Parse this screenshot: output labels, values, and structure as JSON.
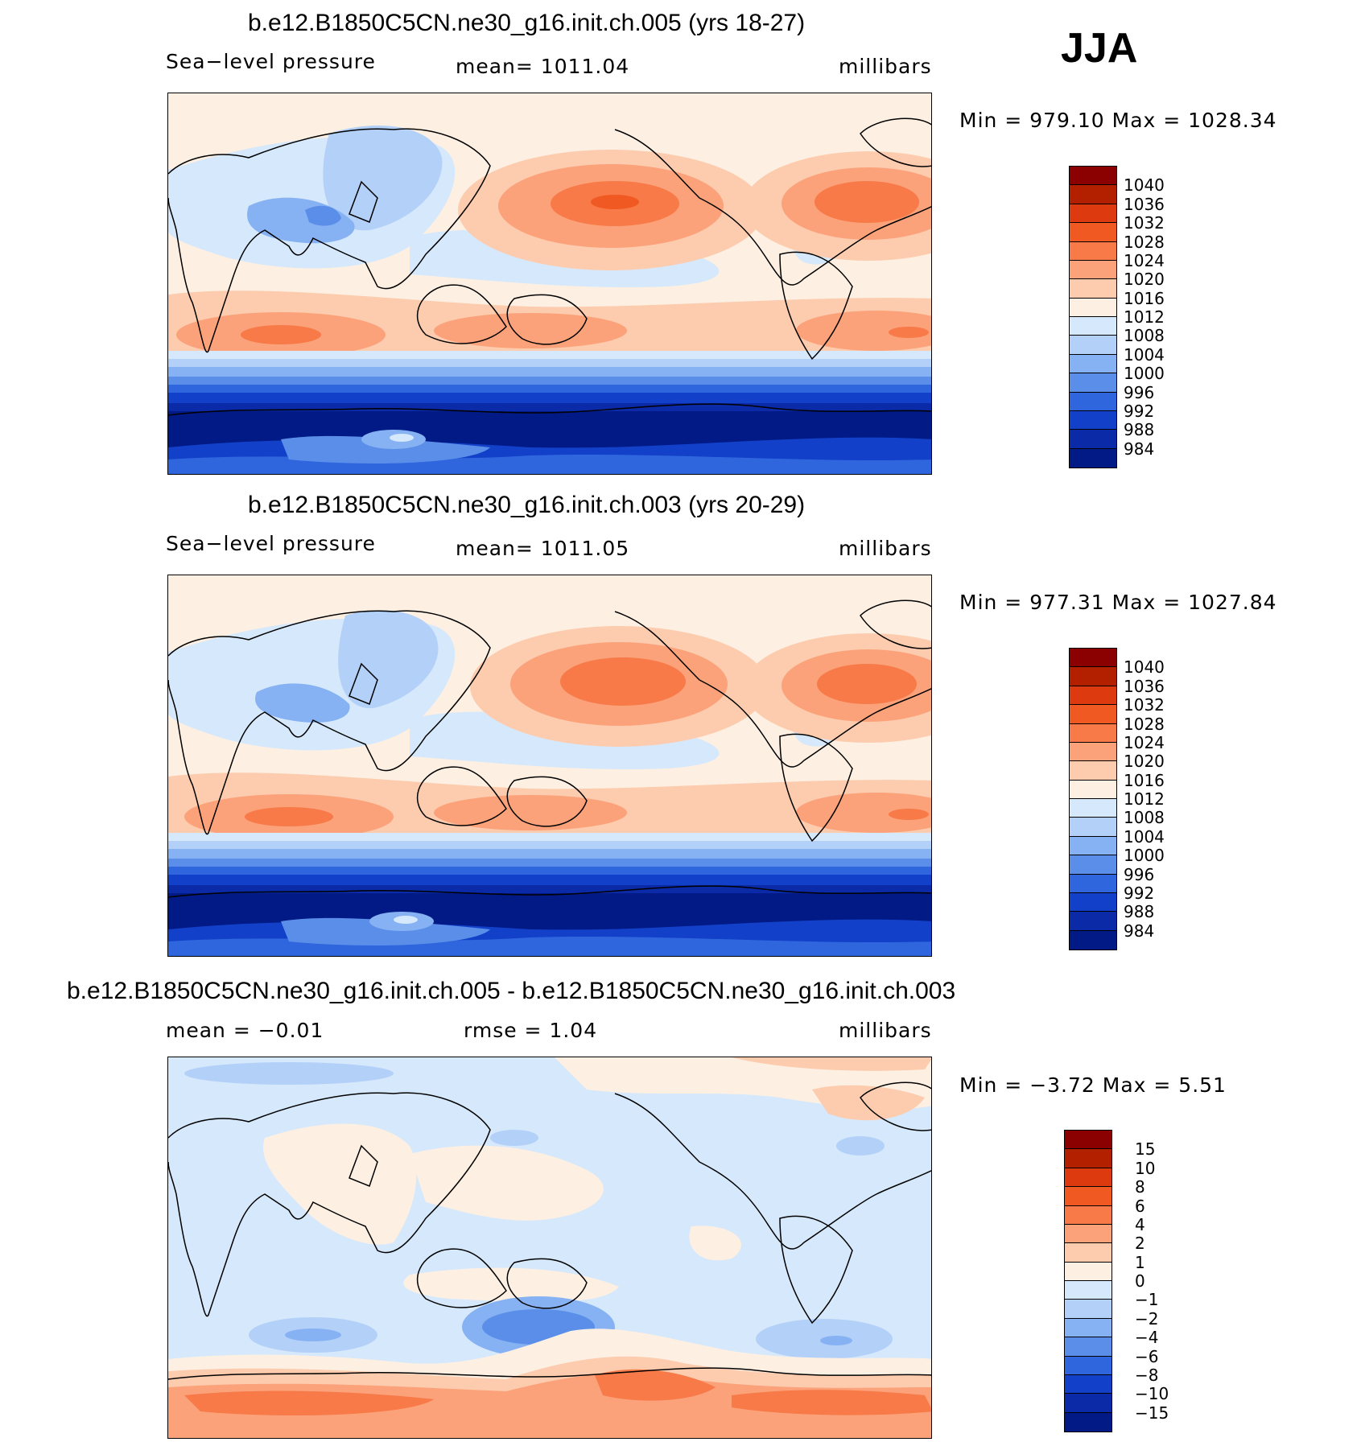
{
  "season": "JJA",
  "panels": [
    {
      "title": "b.e12.B1850C5CN.ne30_g16.init.ch.005 (yrs 18-27)",
      "left_label": "Sea−level pressure",
      "center_label": "mean=  1011.04",
      "right_label": "millibars",
      "minmax": "Min  =  979.10  Max  =  1028.34",
      "colorbar": {
        "labels": [
          "1040",
          "1036",
          "1032",
          "1028",
          "1024",
          "1020",
          "1016",
          "1012",
          "1008",
          "1004",
          "1000",
          "996",
          "992",
          "988",
          "984"
        ]
      }
    },
    {
      "title": "b.e12.B1850C5CN.ne30_g16.init.ch.003 (yrs 20-29)",
      "left_label": "Sea−level pressure",
      "center_label": "mean=  1011.05",
      "right_label": "millibars",
      "minmax": "Min  =  977.31  Max  =  1027.84",
      "colorbar": {
        "labels": [
          "1040",
          "1036",
          "1032",
          "1028",
          "1024",
          "1020",
          "1016",
          "1012",
          "1008",
          "1004",
          "1000",
          "996",
          "992",
          "988",
          "984"
        ]
      }
    },
    {
      "title": "b.e12.B1850C5CN.ne30_g16.init.ch.005 - b.e12.B1850C5CN.ne30_g16.init.ch.003",
      "left_label": "mean  =    −0.01",
      "center_label": "rmse  =     1.04",
      "right_label": "millibars",
      "minmax": "Min  =    −3.72  Max  =      5.51",
      "colorbar": {
        "labels": [
          "15",
          "10",
          "8",
          "6",
          "4",
          "2",
          "1",
          "0",
          "−1",
          "−2",
          "−4",
          "−6",
          "−8",
          "−10",
          "−15"
        ]
      }
    }
  ],
  "palette": [
    "#8b0000",
    "#b22000",
    "#dd3a10",
    "#f05a22",
    "#f77a48",
    "#fba27a",
    "#fdccae",
    "#fdf0e2",
    "#d6e8fb",
    "#b2d0f8",
    "#86b2f3",
    "#5a8ee8",
    "#2f66de",
    "#1240c8",
    "#0a2aa8",
    "#011a85"
  ]
}
